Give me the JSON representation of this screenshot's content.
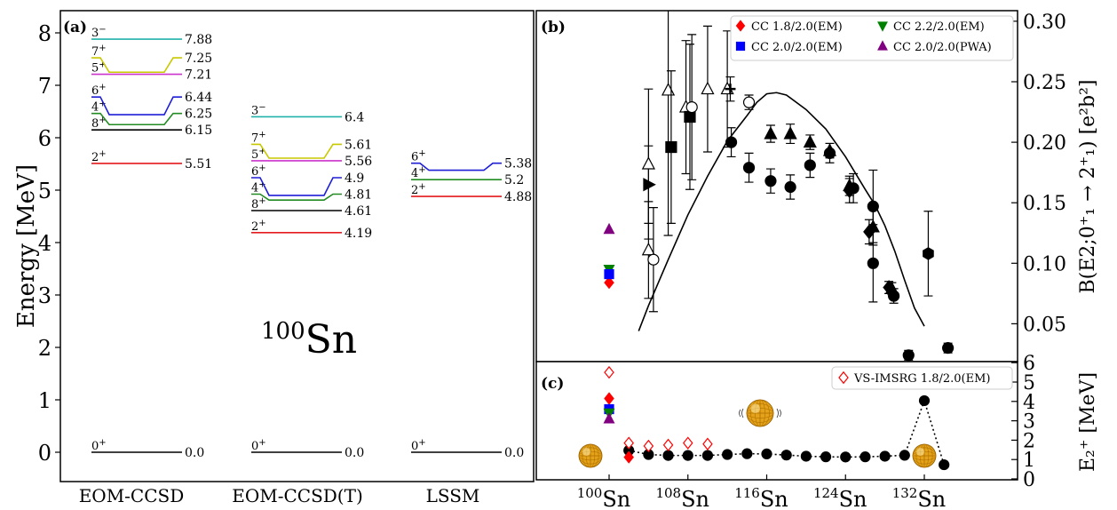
{
  "chart_data": [
    {
      "panel": "(a)",
      "type": "level-scheme",
      "ylabel": "Energy [MeV]",
      "ylim": [
        -0.5,
        8.5
      ],
      "yticks": [
        "0",
        "1",
        "2",
        "3",
        "4",
        "5",
        "6",
        "7",
        "8"
      ],
      "nucleus": {
        "mass": "100",
        "element": "Sn"
      },
      "columns": [
        {
          "name": "EOM-CCSD",
          "levels": [
            {
              "spin": "0",
              "parity": "+",
              "energy": 0.0,
              "label": "0.0",
              "color": "#000000"
            },
            {
              "spin": "2",
              "parity": "+",
              "energy": 5.51,
              "label": "5.51",
              "color": "#e41a1c"
            },
            {
              "spin": "8",
              "parity": "+",
              "energy": 6.15,
              "label": "6.15",
              "color": "#000000"
            },
            {
              "spin": "4",
              "parity": "+",
              "energy": 6.25,
              "label": "6.25",
              "color": "#228b22"
            },
            {
              "spin": "6",
              "parity": "+",
              "energy": 6.44,
              "label": "6.44",
              "color": "#1f1fd6"
            },
            {
              "spin": "5",
              "parity": "+",
              "energy": 7.21,
              "label": "7.21",
              "color": "#cc33cc"
            },
            {
              "spin": "7",
              "parity": "+",
              "energy": 7.25,
              "label": "7.25",
              "color": "#c8c800"
            },
            {
              "spin": "3",
              "parity": "−",
              "energy": 7.88,
              "label": "7.88",
              "color": "#20b2aa"
            }
          ]
        },
        {
          "name": "EOM-CCSD(T)",
          "levels": [
            {
              "spin": "0",
              "parity": "+",
              "energy": 0.0,
              "label": "0.0",
              "color": "#000000"
            },
            {
              "spin": "2",
              "parity": "+",
              "energy": 4.19,
              "label": "4.19",
              "color": "#e41a1c"
            },
            {
              "spin": "8",
              "parity": "+",
              "energy": 4.61,
              "label": "4.61",
              "color": "#000000"
            },
            {
              "spin": "4",
              "parity": "+",
              "energy": 4.81,
              "label": "4.81",
              "color": "#228b22"
            },
            {
              "spin": "6",
              "parity": "+",
              "energy": 4.9,
              "label": "4.9",
              "color": "#1f1fd6"
            },
            {
              "spin": "5",
              "parity": "+",
              "energy": 5.56,
              "label": "5.56",
              "color": "#cc33cc"
            },
            {
              "spin": "7",
              "parity": "+",
              "energy": 5.61,
              "label": "5.61",
              "color": "#c8c800"
            },
            {
              "spin": "3",
              "parity": "−",
              "energy": 6.4,
              "label": "6.4",
              "color": "#20b2aa"
            }
          ]
        },
        {
          "name": "LSSM",
          "levels": [
            {
              "spin": "0",
              "parity": "+",
              "energy": 0.0,
              "label": "0.0",
              "color": "#000000"
            },
            {
              "spin": "2",
              "parity": "+",
              "energy": 4.88,
              "label": "4.88",
              "color": "#e41a1c"
            },
            {
              "spin": "4",
              "parity": "+",
              "energy": 5.2,
              "label": "5.2",
              "color": "#228b22"
            },
            {
              "spin": "6",
              "parity": "+",
              "energy": 5.38,
              "label": "5.38",
              "color": "#1f1fd6"
            }
          ]
        }
      ]
    },
    {
      "panel": "(b)",
      "type": "scatter",
      "x_is_mass_number": true,
      "xlim": [
        98,
        136
      ],
      "ylim": [
        0,
        0.3
      ],
      "ylabel": "B(E2;0⁺₁ → 2⁺₁) [e²b²]",
      "yticks": [
        "0.05",
        "0.10",
        "0.15",
        "0.20",
        "0.25",
        "0.30"
      ],
      "legend": {
        "placement": "top-right",
        "entries": [
          {
            "label": "CC 1.8/2.0(EM)",
            "marker": "diamond",
            "color": "#ff0000"
          },
          {
            "label": "CC 2.2/2.0(EM)",
            "marker": "triangle-down",
            "color": "#008000"
          },
          {
            "label": "CC 2.0/2.0(EM)",
            "marker": "square",
            "color": "#0000ff"
          },
          {
            "label": "CC 2.0/2.0(PWA)",
            "marker": "triangle-up",
            "color": "#800080"
          }
        ]
      },
      "theory": [
        {
          "name": "CC 1.8/2.0(EM)",
          "x": 100,
          "y": 0.084,
          "marker": "diamond",
          "color": "#ff0000"
        },
        {
          "name": "CC 2.2/2.0(EM)",
          "x": 100,
          "y": 0.095,
          "marker": "triangle-down",
          "color": "#008000"
        },
        {
          "name": "CC 2.0/2.0(EM)",
          "x": 100,
          "y": 0.091,
          "marker": "square",
          "color": "#0000ff"
        },
        {
          "name": "CC 2.0/2.0(PWA)",
          "x": 100,
          "y": 0.128,
          "marker": "triangle-up",
          "color": "#800080"
        }
      ],
      "curve": [
        [
          103,
          0.044
        ],
        [
          104,
          0.065
        ],
        [
          106,
          0.103
        ],
        [
          108,
          0.14
        ],
        [
          110,
          0.172
        ],
        [
          112,
          0.201
        ],
        [
          114,
          0.222
        ],
        [
          115,
          0.233
        ],
        [
          116,
          0.24
        ],
        [
          117,
          0.241
        ],
        [
          118,
          0.239
        ],
        [
          120,
          0.227
        ],
        [
          122,
          0.211
        ],
        [
          124,
          0.188
        ],
        [
          126,
          0.161
        ],
        [
          127,
          0.148
        ],
        [
          128,
          0.131
        ],
        [
          129,
          0.11
        ],
        [
          130,
          0.086
        ],
        [
          131,
          0.063
        ],
        [
          132,
          0.048
        ]
      ],
      "experiment": [
        {
          "x": 104,
          "y": 0.111,
          "err": 0.04,
          "marker": "triangle-open"
        },
        {
          "x": 104,
          "y": 0.165,
          "err": 0.032,
          "marker": "triangle-right"
        },
        {
          "x": 104,
          "y": 0.182,
          "err": 0.062,
          "marker": "triangle-open"
        },
        {
          "x": 104.5,
          "y": 0.103,
          "err": 0.043,
          "marker": "circle-open"
        },
        {
          "x": 106,
          "y": 0.243,
          "err": 0.12,
          "marker": "triangle-open"
        },
        {
          "x": 106.3,
          "y": 0.196,
          "err": 0.063,
          "marker": "square"
        },
        {
          "x": 107.8,
          "y": 0.229,
          "err": 0.055,
          "marker": "triangle-open"
        },
        {
          "x": 108.2,
          "y": 0.221,
          "err": 0.06,
          "marker": "square"
        },
        {
          "x": 108.4,
          "y": 0.229,
          "err": 0.06,
          "marker": "circle-open"
        },
        {
          "x": 110,
          "y": 0.244,
          "err": 0.052,
          "marker": "triangle-open"
        },
        {
          "x": 112,
          "y": 0.244,
          "err": 0.048,
          "marker": "triangle-open"
        },
        {
          "x": 112.3,
          "y": 0.244,
          "err": 0.01,
          "marker": "plus"
        },
        {
          "x": 112.4,
          "y": 0.2,
          "err": 0.012,
          "marker": "circle"
        },
        {
          "x": 114.2,
          "y": 0.233,
          "err": 0.006,
          "marker": "circle-open"
        },
        {
          "x": 114.2,
          "y": 0.179,
          "err": 0.012,
          "marker": "circle"
        },
        {
          "x": 116.4,
          "y": 0.207,
          "err": 0.007,
          "marker": "triangle"
        },
        {
          "x": 116.4,
          "y": 0.168,
          "err": 0.01,
          "marker": "circle"
        },
        {
          "x": 118.4,
          "y": 0.207,
          "err": 0.008,
          "marker": "triangle"
        },
        {
          "x": 118.4,
          "y": 0.163,
          "err": 0.01,
          "marker": "circle"
        },
        {
          "x": 120.4,
          "y": 0.2,
          "err": 0.006,
          "marker": "triangle"
        },
        {
          "x": 120.4,
          "y": 0.181,
          "err": 0.01,
          "marker": "circle"
        },
        {
          "x": 122.4,
          "y": 0.193,
          "err": 0.006,
          "marker": "triangle"
        },
        {
          "x": 122.4,
          "y": 0.191,
          "err": 0.008,
          "marker": "circle"
        },
        {
          "x": 124.4,
          "y": 0.164,
          "err": 0.008,
          "marker": "triangle"
        },
        {
          "x": 124.4,
          "y": 0.16,
          "err": 0.01,
          "marker": "diamond"
        },
        {
          "x": 124.8,
          "y": 0.162,
          "err": 0.012,
          "marker": "circle"
        },
        {
          "x": 126.4,
          "y": 0.126,
          "err": 0.01,
          "marker": "diamond"
        },
        {
          "x": 126.8,
          "y": 0.13,
          "err": 0.015,
          "marker": "triangle"
        },
        {
          "x": 126.8,
          "y": 0.147,
          "err": 0.03,
          "marker": "circle"
        },
        {
          "x": 126.8,
          "y": 0.1,
          "err": 0.032,
          "marker": "circle"
        },
        {
          "x": 128.4,
          "y": 0.08,
          "err": 0.005,
          "marker": "diamond"
        },
        {
          "x": 128.7,
          "y": 0.079,
          "err": 0.005,
          "marker": "triangle"
        },
        {
          "x": 128.9,
          "y": 0.073,
          "err": 0.006,
          "marker": "circle"
        },
        {
          "x": 130.4,
          "y": 0.024,
          "err": 0.004,
          "marker": "circle"
        },
        {
          "x": 132.4,
          "y": 0.108,
          "err": 0.035,
          "marker": "hexagon"
        },
        {
          "x": 134.4,
          "y": 0.03,
          "err": 0.004,
          "marker": "circle"
        }
      ]
    },
    {
      "panel": "(c)",
      "type": "scatter",
      "xlim": [
        98,
        136
      ],
      "ylim": [
        0,
        6
      ],
      "ylabel": "E₂⁺ [MeV]",
      "yticks": [
        "0",
        "1",
        "2",
        "3",
        "4",
        "5",
        "6"
      ],
      "xtick_labels": [
        {
          "mass": "100",
          "element": "Sn",
          "x": 100
        },
        {
          "mass": "108",
          "element": "Sn",
          "x": 108
        },
        {
          "mass": "116",
          "element": "Sn",
          "x": 116
        },
        {
          "mass": "124",
          "element": "Sn",
          "x": 124
        },
        {
          "mass": "132",
          "element": "Sn",
          "x": 132
        }
      ],
      "legend": {
        "placement": "top-right",
        "entries": [
          {
            "label": "VS-IMSRG 1.8/2.0(EM)",
            "marker": "diamond-open",
            "color": "#ff0000"
          }
        ]
      },
      "cc_theory": [
        {
          "name": "CC 1.8/2.0(EM)",
          "x": 100,
          "y": 4.15,
          "marker": "diamond",
          "color": "#ff0000"
        },
        {
          "name": "CC 2.0/2.0(EM)",
          "x": 100,
          "y": 3.6,
          "marker": "square",
          "color": "#0000ff"
        },
        {
          "name": "CC 2.2/2.0(EM)",
          "x": 100,
          "y": 3.4,
          "marker": "triangle-down",
          "color": "#008000"
        },
        {
          "name": "CC 2.0/2.0(PWA)",
          "x": 100,
          "y": 3.1,
          "marker": "triangle-up",
          "color": "#800080"
        },
        {
          "name": "CC 1.8/2.0(EM)",
          "x": 102,
          "y": 1.12,
          "marker": "diamond",
          "color": "#ff0000"
        }
      ],
      "vs_imsrg": [
        {
          "x": 100,
          "y": 5.5
        },
        {
          "x": 102,
          "y": 1.85
        },
        {
          "x": 104,
          "y": 1.7
        },
        {
          "x": 106,
          "y": 1.75
        },
        {
          "x": 108,
          "y": 1.85
        },
        {
          "x": 110,
          "y": 1.8
        }
      ],
      "experiment": [
        {
          "x": 102,
          "y": 1.47
        },
        {
          "x": 104,
          "y": 1.26
        },
        {
          "x": 106,
          "y": 1.21
        },
        {
          "x": 108,
          "y": 1.21
        },
        {
          "x": 110,
          "y": 1.21
        },
        {
          "x": 112,
          "y": 1.26
        },
        {
          "x": 114,
          "y": 1.3
        },
        {
          "x": 116,
          "y": 1.29
        },
        {
          "x": 118,
          "y": 1.23
        },
        {
          "x": 120,
          "y": 1.17
        },
        {
          "x": 122,
          "y": 1.14
        },
        {
          "x": 124,
          "y": 1.13
        },
        {
          "x": 126,
          "y": 1.14
        },
        {
          "x": 128,
          "y": 1.17
        },
        {
          "x": 130,
          "y": 1.22
        },
        {
          "x": 132,
          "y": 4.04
        },
        {
          "x": 134,
          "y": 0.73
        }
      ]
    }
  ],
  "colors": {
    "frame": "#000000",
    "sphere": "#e3a21a"
  }
}
